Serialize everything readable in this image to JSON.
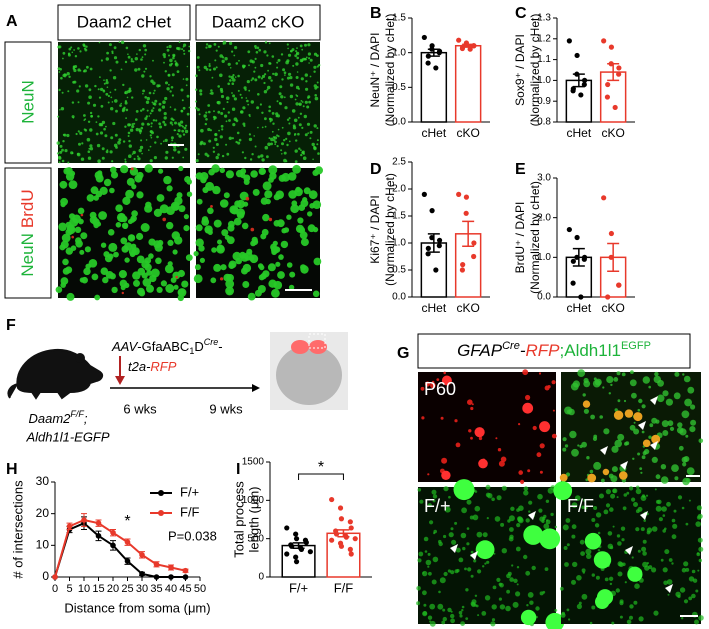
{
  "panel_letters": [
    "A",
    "B",
    "C",
    "D",
    "E",
    "F",
    "G",
    "H",
    "I"
  ],
  "panel_a": {
    "columns": [
      "Daam2 cHet",
      "Daam2 cKO"
    ],
    "rows": [
      [
        "NeuN"
      ],
      [
        "NeuN",
        "BrdU"
      ]
    ]
  },
  "panel_f": {
    "construct_line1": [
      "AAV",
      "-GfaABC",
      "1",
      "D",
      "Cre",
      "-"
    ],
    "construct_line2": [
      "t2a-",
      "RFP"
    ],
    "timepoints": [
      "6 wks",
      "9 wks"
    ],
    "genotype": [
      "Daam2",
      "F/F",
      ";"
    ],
    "reporter": "Aldh1l1-EGFP"
  },
  "panel_g": {
    "title": [
      "GFAP",
      "Cre",
      "-",
      "RFP",
      ";Aldh1l1",
      "EGFP"
    ],
    "image_labels": [
      "P60",
      "F/+",
      "F/F"
    ]
  },
  "chart_data": [
    {
      "type": "bar",
      "y_label": [
        "NeuN⁺ / DAPI",
        "(Normalized by cHet)"
      ],
      "categories": [
        "cHet",
        "cKO"
      ],
      "colors": [
        "#000000",
        "#e8392b"
      ],
      "values": [
        1.0,
        1.1
      ],
      "errors": [
        0.05,
        0.02
      ],
      "points": [
        [
          1.22,
          1.1,
          1.05,
          1.02,
          1.0,
          0.95,
          0.85,
          0.78
        ],
        [
          1.18,
          1.14,
          1.12,
          1.1,
          1.1,
          1.08,
          1.06,
          1.05
        ]
      ],
      "ylim": [
        0,
        1.5
      ],
      "yticks": [
        {
          "value": 0,
          "label": "0.0"
        },
        {
          "value": 0.5,
          "label": "0.5"
        },
        {
          "value": 1,
          "label": "1.0"
        },
        {
          "value": 1.5,
          "label": "1.5"
        }
      ]
    },
    {
      "type": "bar",
      "y_label": [
        "Sox9⁺ / DAPI",
        "(Normalized by cHet)"
      ],
      "categories": [
        "cHet",
        "cKO"
      ],
      "colors": [
        "#000000",
        "#e8392b"
      ],
      "values": [
        1.0,
        1.04
      ],
      "errors": [
        0.03,
        0.04
      ],
      "points": [
        [
          1.19,
          1.12,
          1.03,
          1.0,
          0.98,
          0.96,
          0.95,
          0.93
        ],
        [
          1.19,
          1.16,
          1.08,
          1.06,
          1.03,
          0.98,
          0.92,
          0.87
        ]
      ],
      "ylim": [
        0.8,
        1.3
      ],
      "yticks": [
        {
          "value": 0.8,
          "label": "0.8"
        },
        {
          "value": 0.9,
          "label": "0.9"
        },
        {
          "value": 1,
          "label": "1.0"
        },
        {
          "value": 1.1,
          "label": "1.1"
        },
        {
          "value": 1.2,
          "label": "1.2"
        },
        {
          "value": 1.3,
          "label": "1.3"
        }
      ]
    },
    {
      "type": "bar",
      "y_label": [
        "Ki67⁺ / DAPI",
        "(Normalized by cHet)"
      ],
      "categories": [
        "cHet",
        "cKO"
      ],
      "colors": [
        "#000000",
        "#e8392b"
      ],
      "values": [
        1.0,
        1.17
      ],
      "errors": [
        0.17,
        0.23
      ],
      "points": [
        [
          1.9,
          1.6,
          1.1,
          1.05,
          0.95,
          0.9,
          0.8,
          0.5
        ],
        [
          1.9,
          1.85,
          1.55,
          1.0,
          0.75,
          0.6,
          0.5
        ]
      ],
      "ylim": [
        0,
        2.5
      ],
      "yticks": [
        {
          "value": 0,
          "label": "0.0"
        },
        {
          "value": 0.5,
          "label": "0.5"
        },
        {
          "value": 1,
          "label": "1.0"
        },
        {
          "value": 1.5,
          "label": "1.5"
        },
        {
          "value": 2,
          "label": "2.0"
        },
        {
          "value": 2.5,
          "label": "2.5"
        }
      ]
    },
    {
      "type": "bar",
      "y_label": [
        "BrdU⁺ / DAPI",
        "(Normalized by cHet)"
      ],
      "categories": [
        "cHet",
        "cKO"
      ],
      "colors": [
        "#000000",
        "#e8392b"
      ],
      "values": [
        1.0,
        1.0
      ],
      "errors": [
        0.22,
        0.35
      ],
      "points": [
        [
          1.7,
          1.5,
          1.0,
          1.0,
          0.95,
          0.9,
          0.35,
          0.0
        ],
        [
          2.5,
          1.6,
          1.0,
          0.3,
          0.3,
          0.0
        ]
      ],
      "ylim": [
        0,
        3
      ],
      "yticks": [
        {
          "value": 0,
          "label": "0.0"
        },
        {
          "value": 1,
          "label": "1.0"
        },
        {
          "value": 2,
          "label": "2.0"
        },
        {
          "value": 3,
          "label": "3.0"
        }
      ]
    },
    {
      "type": "line",
      "y_label": [
        "# of intersections"
      ],
      "x_label": "Distance from soma (μm)",
      "x": [
        0,
        5,
        10,
        15,
        20,
        25,
        30,
        35,
        40,
        45
      ],
      "series": [
        {
          "name": "F/+",
          "color": "#000000",
          "values": [
            0,
            15,
            17,
            13,
            10,
            5,
            1,
            0,
            0,
            0
          ],
          "errors": [
            0,
            1,
            2,
            1.5,
            1.5,
            1,
            0.5,
            0,
            0,
            0
          ]
        },
        {
          "name": "F/F",
          "color": "#e8392b",
          "values": [
            0,
            16,
            18,
            17,
            14,
            11,
            7,
            4,
            3,
            2
          ],
          "errors": [
            0,
            1,
            2,
            1,
            1,
            1,
            1,
            0.8,
            0.8,
            0.5
          ]
        }
      ],
      "xlim": [
        0,
        50
      ],
      "xticks": [
        0,
        5,
        10,
        15,
        20,
        25,
        30,
        35,
        40,
        45,
        50
      ],
      "ylim": [
        0,
        30
      ],
      "yticks": [
        0,
        10,
        20,
        30
      ],
      "annotations": [
        "*",
        "P=0.038"
      ]
    },
    {
      "type": "bar",
      "y_label": [
        "Total process",
        "length (μm)"
      ],
      "categories": [
        "F/+",
        "F/F"
      ],
      "colors": [
        "#000000",
        "#e8392b"
      ],
      "values": [
        410,
        570
      ],
      "errors": [
        35,
        45
      ],
      "points": [
        [
          640,
          560,
          500,
          480,
          450,
          420,
          400,
          380,
          360,
          330,
          300,
          260,
          200
        ],
        [
          1010,
          900,
          760,
          720,
          640,
          600,
          560,
          540,
          520,
          500,
          480,
          440,
          400,
          360,
          300
        ]
      ],
      "ylim": [
        0,
        1500
      ],
      "yticks": [
        0,
        500,
        1000,
        1500
      ],
      "annotations": [
        "*"
      ]
    }
  ]
}
